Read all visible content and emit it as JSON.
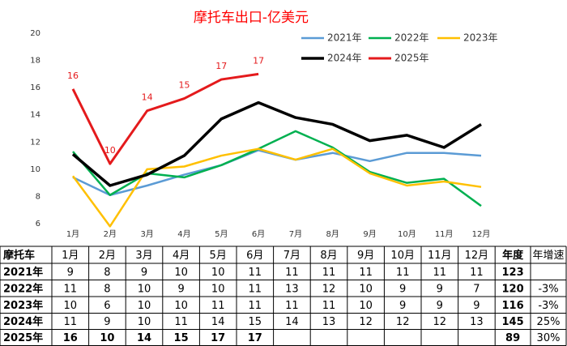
{
  "chart_data": {
    "type": "line",
    "title": "摩托车出口-亿美元",
    "title_color": "#ff0000",
    "categories": [
      "1月",
      "2月",
      "3月",
      "4月",
      "5月",
      "6月",
      "7月",
      "8月",
      "9月",
      "10月",
      "11月",
      "12月"
    ],
    "ylim": [
      6,
      20
    ],
    "yticks": [
      6,
      8,
      10,
      12,
      14,
      16,
      18,
      20
    ],
    "grid": false,
    "legend": "top-right",
    "series": [
      {
        "name": "2021年",
        "color": "#5b9bd5",
        "width": 2.5,
        "values": [
          9.4,
          8.1,
          8.8,
          9.6,
          10.3,
          11.4,
          10.7,
          11.2,
          10.6,
          11.2,
          11.2,
          11.0
        ]
      },
      {
        "name": "2022年",
        "color": "#00b050",
        "width": 2.5,
        "values": [
          11.3,
          8.1,
          9.7,
          9.4,
          10.3,
          11.5,
          12.8,
          11.6,
          9.8,
          9.0,
          9.3,
          7.3
        ]
      },
      {
        "name": "2023年",
        "color": "#ffc000",
        "width": 2.5,
        "values": [
          9.5,
          5.8,
          10.0,
          10.2,
          11.0,
          11.5,
          10.7,
          11.5,
          9.7,
          8.8,
          9.1,
          8.7
        ]
      },
      {
        "name": "2024年",
        "color": "#000000",
        "width": 3.5,
        "values": [
          11.1,
          8.8,
          9.6,
          11.0,
          13.7,
          14.9,
          13.8,
          13.3,
          12.1,
          12.5,
          11.6,
          13.3
        ]
      },
      {
        "name": "2025年",
        "color": "#e41a1c",
        "width": 3,
        "values": [
          15.9,
          10.4,
          14.3,
          15.2,
          16.6,
          17.0,
          null,
          null,
          null,
          null,
          null,
          null
        ],
        "value_labels": [
          "16",
          "10",
          "14",
          "15",
          "17",
          "17",
          null,
          null,
          null,
          null,
          null,
          null
        ]
      }
    ]
  },
  "table": {
    "header": [
      "摩托车",
      "1月",
      "2月",
      "3月",
      "4月",
      "5月",
      "6月",
      "7月",
      "8月",
      "9月",
      "10月",
      "11月",
      "12月",
      "年度",
      "年增速"
    ],
    "rows": [
      [
        "2021年",
        "9",
        "8",
        "9",
        "10",
        "10",
        "11",
        "11",
        "11",
        "11",
        "11",
        "11",
        "11",
        "123",
        null
      ],
      [
        "2022年",
        "11",
        "8",
        "10",
        "9",
        "10",
        "11",
        "13",
        "12",
        "10",
        "9",
        "9",
        "7",
        "120",
        "-3%"
      ],
      [
        "2023年",
        "10",
        "6",
        "10",
        "10",
        "11",
        "11",
        "11",
        "11",
        "10",
        "9",
        "9",
        "9",
        "116",
        "-3%"
      ],
      [
        "2024年",
        "11",
        "9",
        "10",
        "11",
        "14",
        "15",
        "14",
        "13",
        "12",
        "12",
        "12",
        "13",
        "145",
        "25%"
      ],
      [
        "2025年",
        "16",
        "10",
        "14",
        "15",
        "17",
        "17",
        null,
        null,
        null,
        null,
        null,
        null,
        "89",
        "30%"
      ]
    ],
    "highlight_row": 4,
    "highlight_color": "#ff0000"
  }
}
